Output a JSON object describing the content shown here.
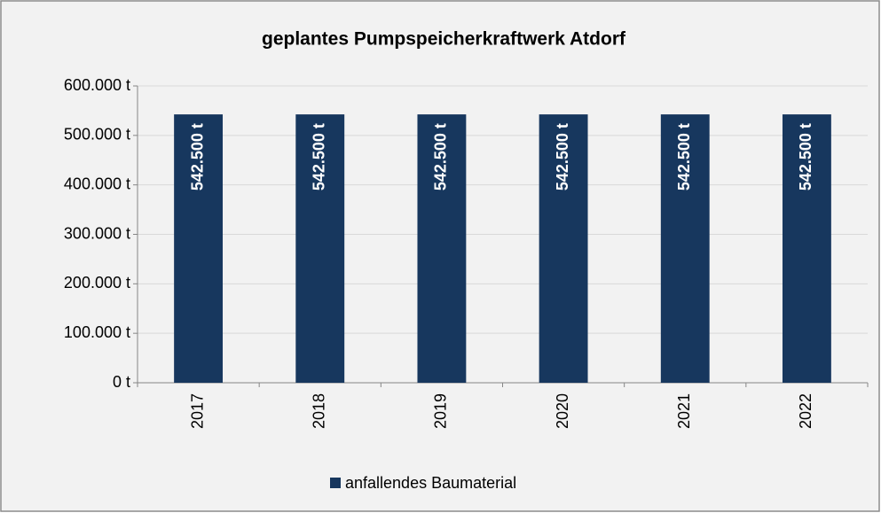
{
  "chart_data": {
    "type": "bar",
    "title": "geplantes Pumpspeicherkraftwerk Atdorf",
    "categories": [
      "2017",
      "2018",
      "2019",
      "2020",
      "2021",
      "2022"
    ],
    "series": [
      {
        "name": "anfallendes Baumaterial",
        "color": "#17375e",
        "values": [
          542500,
          542500,
          542500,
          542500,
          542500,
          542500
        ],
        "value_labels": [
          "542.500 t",
          "542.500 t",
          "542.500 t",
          "542.500 t",
          "542.500 t",
          "542.500 t"
        ]
      }
    ],
    "ylim": [
      0,
      600000
    ],
    "yticks": [
      {
        "value": 0,
        "label": "0 t"
      },
      {
        "value": 100000,
        "label": "100.000 t"
      },
      {
        "value": 200000,
        "label": "200.000 t"
      },
      {
        "value": 300000,
        "label": "300.000 t"
      },
      {
        "value": 400000,
        "label": "400.000 t"
      },
      {
        "value": 500000,
        "label": "500.000 t"
      },
      {
        "value": 600000,
        "label": "600.000 t"
      }
    ],
    "grid": true,
    "legend": "bottom"
  }
}
